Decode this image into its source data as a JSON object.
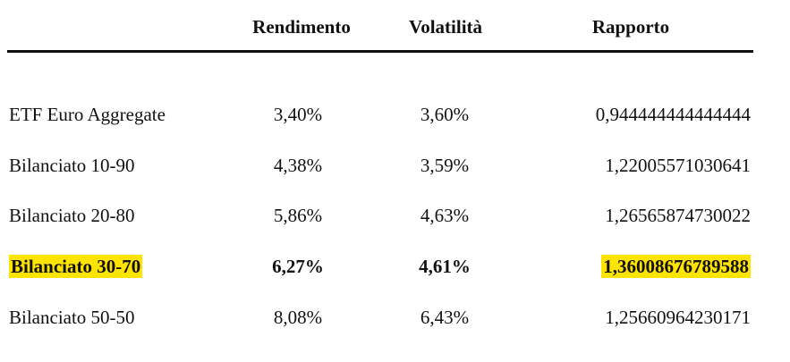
{
  "table": {
    "headers": [
      "Rendimento",
      "Volatilità",
      "Rapporto"
    ],
    "rows": [
      [
        "ETF Euro Aggregate",
        "3,40%",
        "3,60%",
        "0,944444444444444"
      ],
      [
        "Bilanciato 10-90",
        "4,38%",
        "3,59%",
        "1,22005571030641"
      ],
      [
        "Bilanciato 20-80",
        "5,86%",
        "4,63%",
        "1,26565874730022"
      ],
      [
        "Bilanciato 30-70",
        "6,27%",
        "4,61%",
        "1,36008676789588"
      ],
      [
        "Bilanciato 50-50",
        "8,08%",
        "6,43%",
        "1,25660964230171"
      ]
    ]
  }
}
